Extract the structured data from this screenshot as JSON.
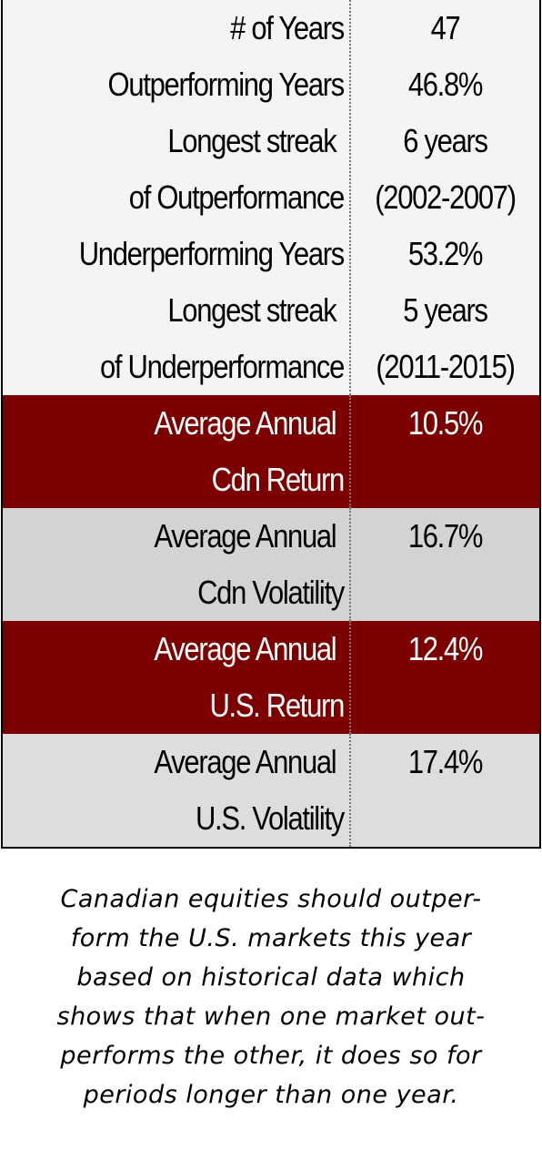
{
  "table": {
    "top_rows": [
      {
        "label": [
          "# of Years"
        ],
        "value": [
          "47"
        ]
      },
      {
        "label": [
          "Outperforming Years"
        ],
        "value": [
          "46.8%"
        ]
      },
      {
        "label": [
          "Longest streak",
          "of Outperformance"
        ],
        "value": [
          "6 years",
          "(2002-2007)"
        ]
      },
      {
        "label": [
          "Underperforming Years"
        ],
        "value": [
          "53.2%"
        ]
      },
      {
        "label": [
          "Longest streak",
          "of Underperformance"
        ],
        "value": [
          "5 years",
          "(2011-2015)"
        ]
      }
    ],
    "bands": [
      {
        "label": [
          "Average Annual",
          "Cdn Return"
        ],
        "value": "10.5%",
        "style": "red"
      },
      {
        "label": [
          "Average Annual",
          "Cdn Volatility"
        ],
        "value": "16.7%",
        "style": "gray"
      },
      {
        "label": [
          "Average Annual",
          "U.S. Return"
        ],
        "value": "12.4%",
        "style": "red"
      },
      {
        "label": [
          "Average Annual",
          "U.S. Volatility"
        ],
        "value": "17.4%",
        "style": "lightgray"
      }
    ]
  },
  "caption": {
    "lines": [
      "Canadian equities should outper-",
      "form the U.S. markets this year",
      "based on historical data which",
      "shows that when one market out-",
      "performs the other, it does so for",
      "periods longer than one year."
    ]
  },
  "colors": {
    "red_band": "#7c0000",
    "gray_band": "#d3d3d3",
    "top_background": "#f4f4f4"
  }
}
